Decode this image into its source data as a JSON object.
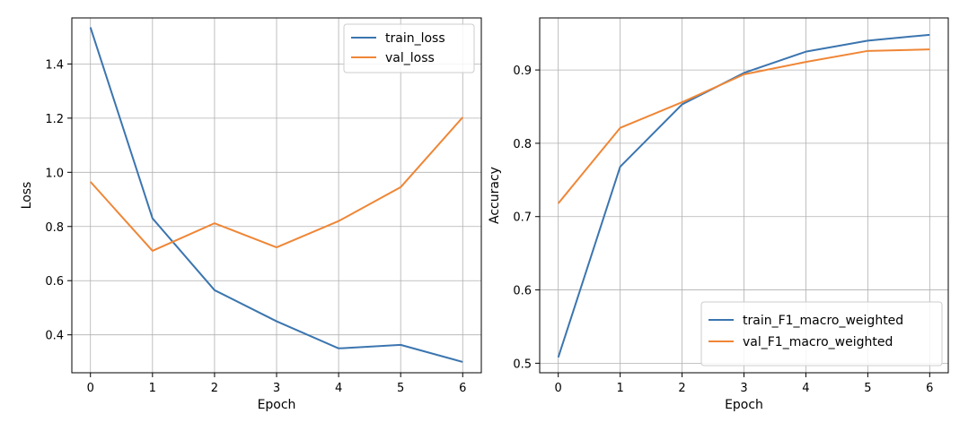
{
  "chart_data": [
    {
      "type": "line",
      "xlabel": "Epoch",
      "ylabel": "Loss",
      "x": [
        0,
        1,
        2,
        3,
        4,
        5,
        6
      ],
      "xlim": [
        -0.3,
        6.3
      ],
      "ylim": [
        0.26,
        1.57
      ],
      "xticks": [
        0,
        1,
        2,
        3,
        4,
        5,
        6
      ],
      "yticks": [
        0.4,
        0.6,
        0.8,
        1.0,
        1.2,
        1.4
      ],
      "ytick_labels": [
        "0.4",
        "0.6",
        "0.8",
        "1.0",
        "1.2",
        "1.4"
      ],
      "grid": true,
      "legend_position": "top-right",
      "series": [
        {
          "name": "train_loss",
          "color": "#3b75af",
          "values": [
            1.535,
            0.83,
            0.565,
            0.45,
            0.35,
            0.363,
            0.3
          ]
        },
        {
          "name": "val_loss",
          "color": "#ef8636",
          "values": [
            0.965,
            0.71,
            0.812,
            0.723,
            0.82,
            0.945,
            1.203
          ]
        }
      ]
    },
    {
      "type": "line",
      "xlabel": "Epoch",
      "ylabel": "Accuracy",
      "x": [
        0,
        1,
        2,
        3,
        4,
        5,
        6
      ],
      "xlim": [
        -0.3,
        6.3
      ],
      "ylim": [
        0.487,
        0.971
      ],
      "xticks": [
        0,
        1,
        2,
        3,
        4,
        5,
        6
      ],
      "yticks": [
        0.5,
        0.6,
        0.7,
        0.8,
        0.9
      ],
      "ytick_labels": [
        "0.5",
        "0.6",
        "0.7",
        "0.8",
        "0.9"
      ],
      "grid": true,
      "legend_position": "bottom-right",
      "series": [
        {
          "name": "train_F1_macro_weighted",
          "color": "#3b75af",
          "values": [
            0.508,
            0.768,
            0.853,
            0.896,
            0.925,
            0.94,
            0.948
          ]
        },
        {
          "name": "val_F1_macro_weighted",
          "color": "#ef8636",
          "values": [
            0.718,
            0.821,
            0.856,
            0.894,
            0.911,
            0.926,
            0.928
          ]
        }
      ]
    }
  ]
}
